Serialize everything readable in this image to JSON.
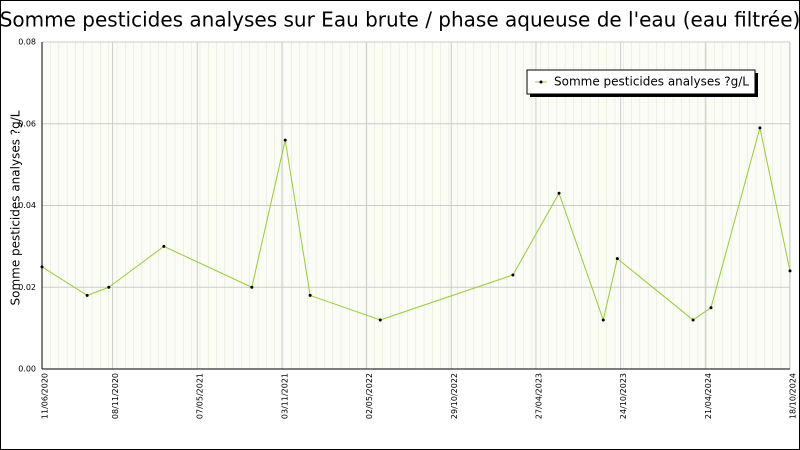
{
  "chart_data": {
    "type": "line",
    "title": "Somme pesticides analyses sur Eau brute / phase aqueuse de l'eau (eau filtrée)",
    "y_label": "Somme pesticides analyses ?g/L",
    "x": [
      "11/06/2020",
      "15/09/2020",
      "31/10/2020",
      "25/02/2021",
      "31/08/2021",
      "10/11/2021",
      "02/01/2022",
      "31/05/2022",
      "09/03/2023",
      "15/06/2023",
      "17/09/2023",
      "17/10/2023",
      "26/03/2024",
      "03/05/2024",
      "15/08/2024",
      "18/10/2024"
    ],
    "series": [
      {
        "name": "Somme pesticides analyses ?g/L",
        "color": "#99cc33",
        "values": [
          0.025,
          0.018,
          0.02,
          0.03,
          0.02,
          0.056,
          0.018,
          0.012,
          0.023,
          0.043,
          0.012,
          0.027,
          0.012,
          0.015,
          0.059,
          0.024
        ]
      }
    ],
    "xlim": [
      "11/06/2020",
      "18/10/2024"
    ],
    "xticks": [
      "11/06/2020",
      "08/11/2020",
      "07/05/2021",
      "03/11/2021",
      "02/05/2022",
      "29/10/2022",
      "27/04/2023",
      "24/10/2023",
      "21/04/2024",
      "18/10/2024"
    ],
    "ylim": [
      0,
      0.08
    ],
    "yticks": [
      {
        "value": 0,
        "label": "0.00"
      },
      {
        "value": 0.02,
        "label": "0.02"
      },
      {
        "value": 0.04,
        "label": "0.04"
      },
      {
        "value": 0.06,
        "label": "0.06"
      },
      {
        "value": 0.08,
        "label": "0.08"
      }
    ],
    "grid": true,
    "legend": "top-right"
  }
}
